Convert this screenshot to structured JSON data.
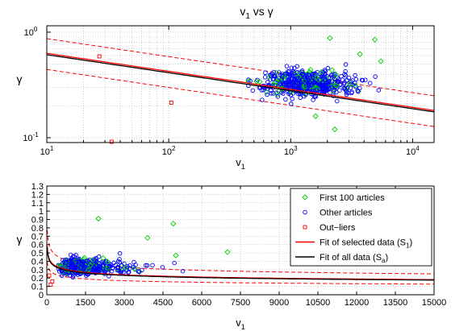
{
  "colors": {
    "first100": "#00d000",
    "other": "#0000ff",
    "outlier": "#ff0000",
    "fit_selected": "#ff0000",
    "fit_all": "#000000",
    "grid": "#b8b8b8"
  },
  "chart_data": [
    {
      "type": "scatter",
      "title": "v₁ vs γ",
      "xlabel": "v₁",
      "ylabel": "γ",
      "xscale": "log",
      "yscale": "log",
      "xlim": [
        10,
        15000
      ],
      "ylim": [
        0.09,
        1.15
      ],
      "xticks": [
        10,
        100,
        1000,
        10000
      ],
      "xtick_labels": [
        {
          "base": "10",
          "exp": "1"
        },
        {
          "base": "10",
          "exp": "2"
        },
        {
          "base": "10",
          "exp": "3"
        },
        {
          "base": "10",
          "exp": "4"
        }
      ],
      "yticks": [
        0.1,
        1
      ],
      "ytick_labels": [
        {
          "base": "10",
          "exp": "-1"
        },
        {
          "base": "10",
          "exp": "0"
        }
      ],
      "grid": true,
      "fit": {
        "log_a": -0.0366,
        "b": -0.1705
      },
      "band_offset_log": 0.146,
      "outliers": [
        [
          27,
          0.59
        ],
        [
          105,
          0.215
        ],
        [
          34,
          0.089
        ]
      ],
      "first100_extra": [
        [
          2100,
          0.88
        ],
        [
          4900,
          0.85
        ],
        [
          3700,
          0.62
        ],
        [
          5500,
          0.53
        ],
        [
          2300,
          0.12
        ],
        [
          1600,
          0.16
        ]
      ]
    },
    {
      "type": "scatter",
      "xlabel": "v₁",
      "ylabel": "γ",
      "xlim": [
        0,
        15000
      ],
      "ylim": [
        0,
        1.3
      ],
      "xticks": [
        0,
        1500,
        3000,
        4500,
        6000,
        7500,
        9000,
        10500,
        12000,
        13500,
        15000
      ],
      "yticks": [
        0,
        0.1,
        0.2,
        0.3,
        0.4,
        0.5,
        0.6,
        0.7,
        0.8,
        0.9,
        1,
        1.1,
        1.2,
        1.3
      ],
      "ytick_labels": [
        "0",
        "0.1",
        "0.2",
        "0.3",
        "0.4",
        "0.5",
        "0.6",
        "0.7",
        "0.8",
        "0.9",
        "1",
        "1.1",
        "1.2",
        "1.3"
      ],
      "grid": true,
      "legend_position": "top-right",
      "legend": [
        {
          "label": "First 100 articles",
          "marker": "diamond",
          "color": "#00d000"
        },
        {
          "label": "Other articles",
          "marker": "circle",
          "color": "#0000ff"
        },
        {
          "label": "Out−liers",
          "marker": "square",
          "color": "#ff0000"
        },
        {
          "label": "Fit of selected data (S",
          "sub": "1",
          "tail": ")",
          "marker": "line",
          "color": "#ff0000"
        },
        {
          "label": "Fit of all data (S",
          "sub": "a",
          "tail": ")",
          "marker": "line",
          "color": "#000000"
        }
      ],
      "outliers": [
        [
          30,
          0.23
        ],
        [
          90,
          0.12
        ],
        [
          150,
          0.16
        ]
      ],
      "first100_extra": [
        [
          2000,
          0.91
        ],
        [
          4900,
          0.85
        ],
        [
          7000,
          0.51
        ],
        [
          3900,
          0.68
        ],
        [
          5000,
          0.47
        ]
      ]
    }
  ]
}
